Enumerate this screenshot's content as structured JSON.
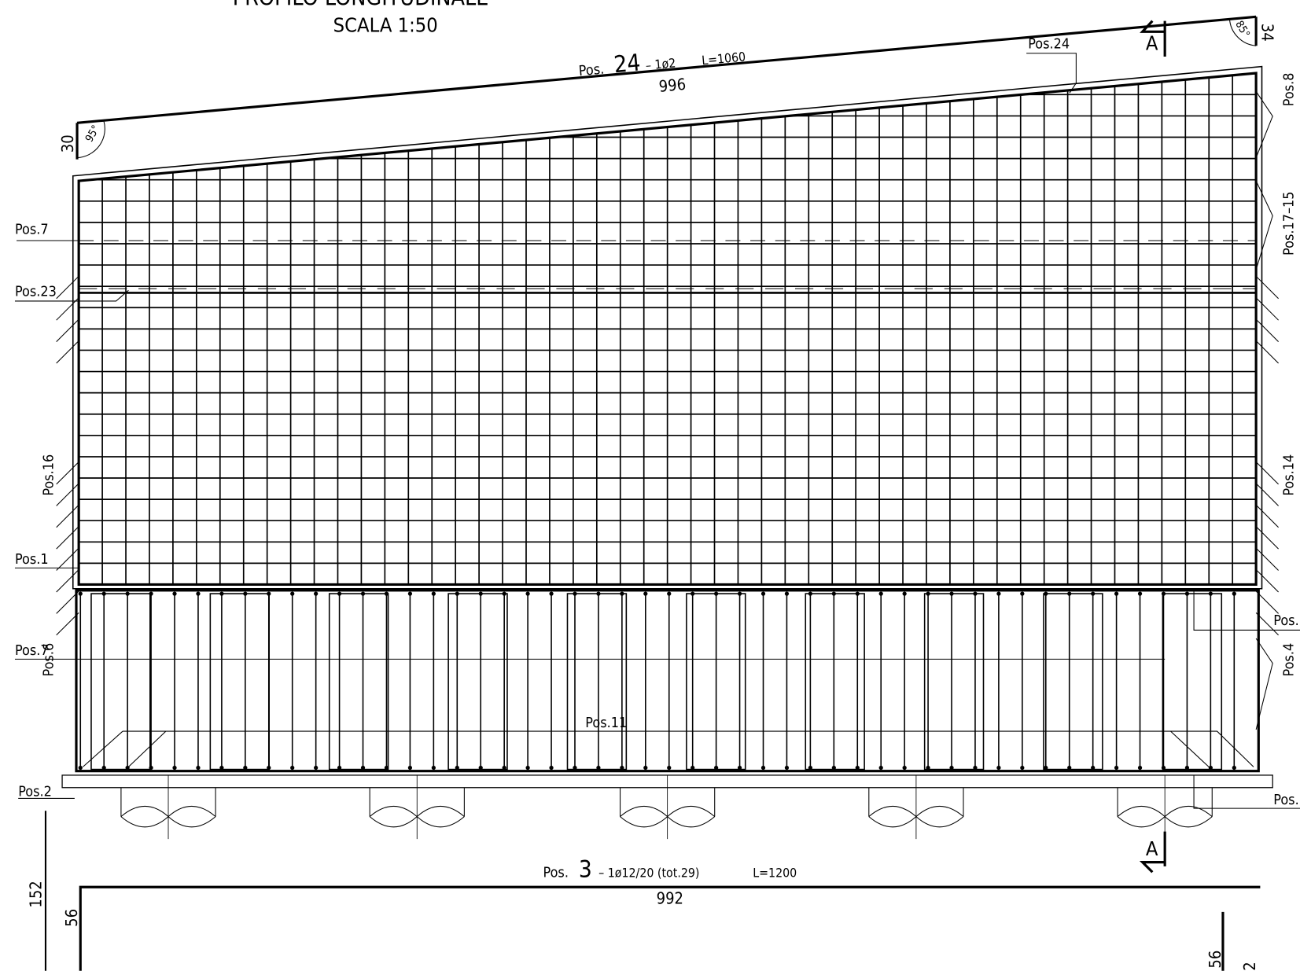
{
  "header": {
    "title": "PROFILO LONGITUDINALE",
    "scale": "SCALA 1:50"
  },
  "top_bar": {
    "pos_prefix": "Pos.",
    "pos_number": "24",
    "spec": "– 1ø2",
    "length": "L=1060",
    "dimension": "996"
  },
  "section_marks": [
    "A",
    "A"
  ],
  "angles": {
    "left_angle": "95°",
    "left_height": "30",
    "right_angle": "85°",
    "right_height": "34"
  },
  "left_labels": [
    "Pos.7",
    "Pos.23",
    "Pos.16",
    "Pos.1",
    "Pos.7",
    "Pos.6",
    "Pos.2"
  ],
  "right_labels": [
    "Pos.8",
    "Pos.17–15",
    "Pos.14",
    "Pos.",
    "Pos.4",
    "Pos."
  ],
  "inner_labels": [
    "Pos.24",
    "Pos.11"
  ],
  "bottom_bar": {
    "pos_prefix": "Pos.",
    "pos_number": "3",
    "spec": "– 1ø12/20 (tot.29)",
    "length": "L=1200",
    "dimension": "992",
    "left_height": "152",
    "left_leg": "56",
    "right_leg": "56",
    "right_height": "2"
  }
}
